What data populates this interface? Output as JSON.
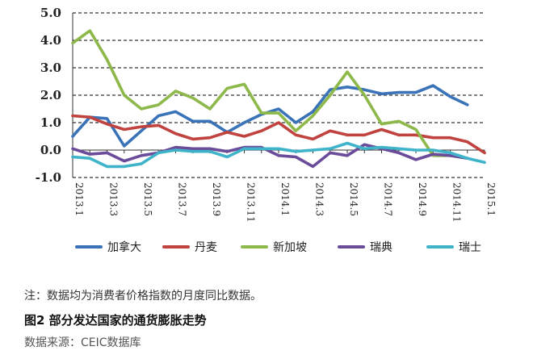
{
  "chart_data": {
    "type": "line",
    "title": "",
    "xlabel": "",
    "ylabel": "",
    "ylim": [
      -1.0,
      5.0
    ],
    "yticks": [
      "5.0",
      "4.0",
      "3.0",
      "2.0",
      "1.0",
      "0.0",
      "-1.0"
    ],
    "grid": "dashed horizontal",
    "legend_position": "bottom",
    "x": [
      "2013.1",
      "2013.2",
      "2013.3",
      "2013.4",
      "2013.5",
      "2013.6",
      "2013.7",
      "2013.8",
      "2013.9",
      "2013.10",
      "2013.11",
      "2013.12",
      "2014.1",
      "2014.2",
      "2014.3",
      "2014.4",
      "2014.5",
      "2014.6",
      "2014.7",
      "2014.8",
      "2014.9",
      "2014.10",
      "2014.11",
      "2014.12",
      "2015.1"
    ],
    "xtick_labels": [
      "2013.1",
      "2013.3",
      "2013.5",
      "2013.7",
      "2013.9",
      "2013.11",
      "2014.1",
      "2014.3",
      "2014.5",
      "2014.7",
      "2014.9",
      "2014.11",
      "2015.1"
    ],
    "series": [
      {
        "name": "加拿大",
        "color": "#3a73b8",
        "values": [
          0.5,
          1.2,
          1.15,
          0.15,
          0.7,
          1.25,
          1.4,
          1.05,
          1.05,
          0.65,
          1.0,
          1.3,
          1.5,
          1.0,
          1.4,
          2.2,
          2.3,
          2.2,
          2.05,
          2.1,
          2.1,
          2.35,
          1.95,
          1.65,
          null
        ]
      },
      {
        "name": "丹麦",
        "color": "#c0433f",
        "values": [
          1.25,
          1.2,
          0.95,
          0.75,
          0.85,
          0.9,
          0.6,
          0.4,
          0.45,
          0.65,
          0.5,
          0.7,
          1.0,
          0.55,
          0.4,
          0.7,
          0.55,
          0.55,
          0.75,
          0.55,
          0.55,
          0.45,
          0.45,
          0.3,
          -0.1
        ]
      },
      {
        "name": "新加坡",
        "color": "#8db84a",
        "values": [
          3.9,
          4.35,
          3.3,
          2.0,
          1.5,
          1.65,
          2.15,
          1.9,
          1.5,
          2.25,
          2.4,
          1.35,
          1.35,
          0.7,
          1.25,
          2.0,
          2.85,
          2.0,
          0.95,
          1.05,
          0.75,
          -0.2,
          -0.2,
          null,
          null
        ]
      },
      {
        "name": "瑞典",
        "color": "#6b4c9a",
        "values": [
          0.05,
          -0.15,
          -0.1,
          -0.4,
          -0.2,
          -0.1,
          0.1,
          0.05,
          0.05,
          -0.05,
          0.1,
          0.1,
          -0.2,
          -0.25,
          -0.6,
          -0.1,
          -0.2,
          0.2,
          0.05,
          -0.1,
          -0.35,
          -0.15,
          -0.2,
          -0.3,
          null
        ]
      },
      {
        "name": "瑞士",
        "color": "#3fb3c9",
        "values": [
          -0.25,
          -0.3,
          -0.6,
          -0.6,
          -0.5,
          -0.1,
          0.0,
          -0.05,
          -0.05,
          -0.25,
          0.05,
          0.05,
          0.05,
          -0.05,
          0.0,
          0.05,
          0.25,
          0.05,
          0.1,
          0.05,
          0.0,
          0.0,
          -0.1,
          -0.3,
          -0.45
        ]
      }
    ]
  },
  "footer": {
    "note": "注：数据均为消费者价格指数的月度同比数据。",
    "caption": "图2 部分发达国家的通货膨胀走势",
    "source": "数据来源：CEIC数据库"
  }
}
